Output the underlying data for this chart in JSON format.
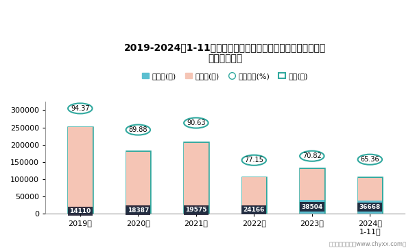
{
  "title_line1": "2019-2024年1-11月济南大隆机车工业有限公司摩托车产销及出",
  "title_line2": "口情况统计图",
  "years": [
    "2019年",
    "2020年",
    "2021年",
    "2022年",
    "2023年",
    "2024年\n1-11月"
  ],
  "export_qty": [
    14110,
    18387,
    19575,
    24166,
    38504,
    36668
  ],
  "export_bar": [
    15000,
    20000,
    21000,
    23000,
    40000,
    37500
  ],
  "domestic": [
    236000,
    160000,
    185000,
    82000,
    90000,
    67000
  ],
  "production": [
    252000,
    181000,
    208000,
    106000,
    131000,
    105000
  ],
  "ratio": [
    94.37,
    89.88,
    90.63,
    77.15,
    70.82,
    65.36
  ],
  "ratio_y": [
    305000,
    243000,
    263000,
    155000,
    167000,
    157000
  ],
  "export_color": "#5bbfd0",
  "domestic_color": "#f5c5b5",
  "prod_border_color": "#2fa89e",
  "circle_color": "#2fa89e",
  "bar_width": 0.42,
  "ylim": [
    0,
    325000
  ],
  "yticks": [
    0,
    50000,
    100000,
    150000,
    200000,
    250000,
    300000
  ],
  "footer": "制图：智研咨询（www.chyxx.com）",
  "background_color": "#ffffff",
  "legend_labels": [
    "出口量(辆)",
    "内销量(辆)",
    "内销占比(%)",
    "产量(辆)"
  ]
}
